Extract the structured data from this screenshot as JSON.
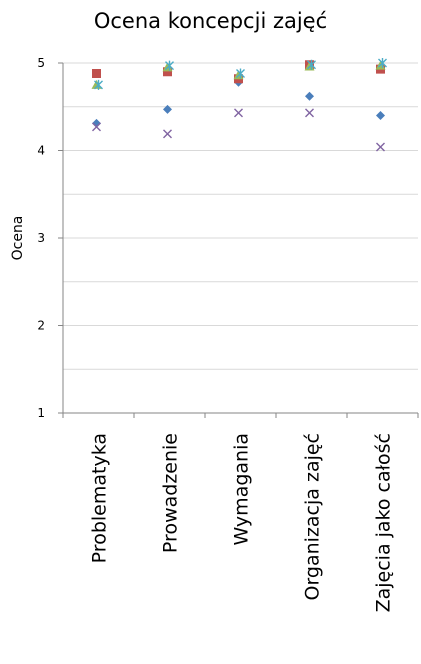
{
  "chart_data": {
    "type": "scatter",
    "title": "Ocena koncepcji zajęć",
    "ylabel": "Ocena",
    "xlabel": "",
    "categories": [
      "Problematyka",
      "Prowadzenie",
      "Wymagania",
      "Organizacja zajęć",
      "Zajęcia jako całość"
    ],
    "ylim": [
      1,
      5
    ],
    "yticks": [
      1,
      2,
      3,
      4,
      5
    ],
    "grid": "horizontal",
    "legend": "none",
    "series": [
      {
        "marker": "diamond",
        "color": "#4a7ebb",
        "values": [
          4.31,
          4.47,
          4.78,
          4.62,
          4.4
        ]
      },
      {
        "marker": "square",
        "color": "#c0504d",
        "values": [
          4.88,
          4.9,
          4.82,
          4.98,
          4.93
        ]
      },
      {
        "marker": "triangle",
        "color": "#9bbb59",
        "values": [
          4.75,
          4.95,
          4.86,
          4.96,
          4.97
        ]
      },
      {
        "marker": "x",
        "color": "#8064a2",
        "values": [
          4.27,
          4.19,
          4.43,
          4.43,
          4.04
        ]
      },
      {
        "marker": "star",
        "color": "#4bacc6",
        "values": [
          4.75,
          4.97,
          4.88,
          4.98,
          5.0
        ]
      }
    ]
  }
}
